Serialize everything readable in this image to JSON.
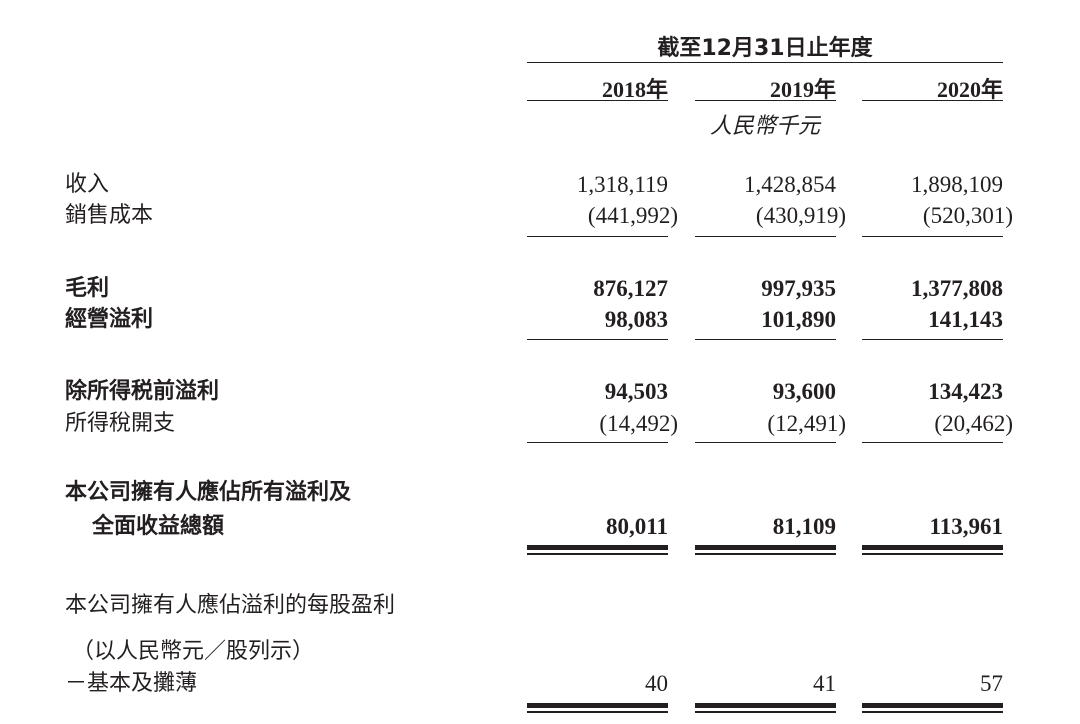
{
  "header": {
    "period": "截至12月31日止年度",
    "years": [
      "2018年",
      "2019年",
      "2020年"
    ],
    "unit": "人民幣千元"
  },
  "rows": [
    {
      "label": "收入",
      "values": [
        "1,318,119",
        "1,428,854",
        "1,898,109"
      ]
    },
    {
      "label": "銷售成本",
      "values": [
        "(441,992)",
        "(430,919)",
        "(520,301)"
      ]
    },
    {
      "label": "毛利",
      "values": [
        "876,127",
        "997,935",
        "1,377,808"
      ]
    },
    {
      "label": "經營溢利",
      "values": [
        "98,083",
        "101,890",
        "141,143"
      ]
    },
    {
      "label": "除所得税前溢利",
      "values": [
        "94,503",
        "93,600",
        "134,423"
      ]
    },
    {
      "label": "所得稅開支",
      "values": [
        "(14,492)",
        "(12,491)",
        "(20,462)"
      ]
    },
    {
      "label": "本公司擁有人應佔所有溢利及",
      "label2": "全面收益總額",
      "values": [
        "80,011",
        "81,109",
        "113,961"
      ]
    }
  ],
  "eps": {
    "title": "本公司擁有人應佔溢利的每股盈利",
    "unit_note": "（以人民幣元／股列示）",
    "label": "－基本及攤薄",
    "values": [
      "40",
      "41",
      "57"
    ]
  }
}
